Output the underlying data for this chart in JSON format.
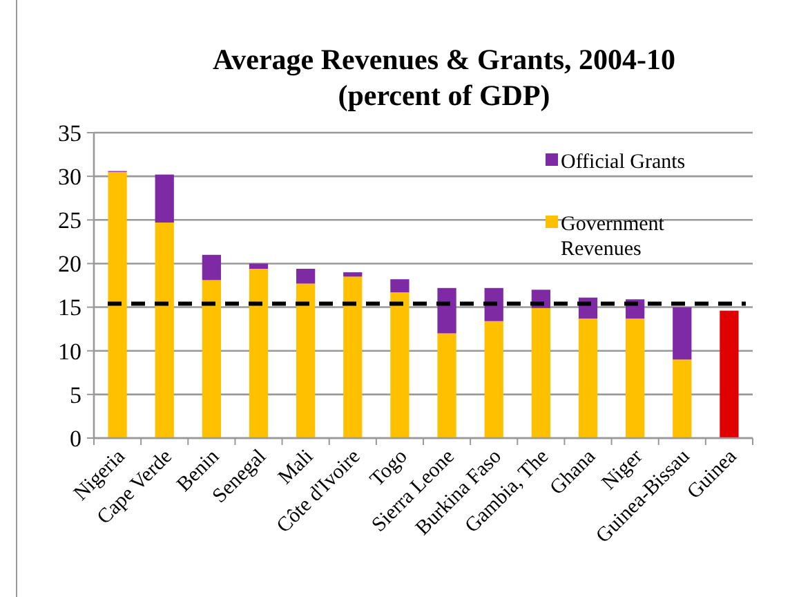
{
  "chart_data": {
    "type": "bar",
    "title": "Average Revenues & Grants, 2004-10\n(percent of GDP)",
    "stacked": true,
    "categories": [
      "Nigeria",
      "Cape Verde",
      "Benin",
      "Senegal",
      "Mali",
      "Côte d'Ivoire",
      "Togo",
      "Sierra Leone",
      "Burkina Faso",
      "Gambia, The",
      "Ghana",
      "Niger",
      "Guinea-Bissau",
      "Guinea"
    ],
    "series": [
      {
        "name": "Government Revenues",
        "color": "#ffc000",
        "colors": [
          "#ffc000",
          "#ffc000",
          "#ffc000",
          "#ffc000",
          "#ffc000",
          "#ffc000",
          "#ffc000",
          "#ffc000",
          "#ffc000",
          "#ffc000",
          "#ffc000",
          "#ffc000",
          "#ffc000",
          "#e00000"
        ],
        "values": [
          30.5,
          24.7,
          18.1,
          19.4,
          17.7,
          18.5,
          16.7,
          12.0,
          13.4,
          14.9,
          13.7,
          13.7,
          9.0,
          14.6
        ]
      },
      {
        "name": "Official Grants",
        "color": "#7f2aa5",
        "values": [
          0.1,
          5.5,
          2.9,
          0.6,
          1.7,
          0.5,
          1.5,
          5.2,
          3.8,
          2.1,
          2.4,
          2.2,
          6.0,
          null
        ]
      }
    ],
    "ylim": [
      0,
      35
    ],
    "yticks": [
      0,
      5,
      10,
      15,
      20,
      25,
      30,
      35
    ],
    "grid": "y",
    "legend": "top right",
    "ref_lines": [
      {
        "axis": "y",
        "value": 15.4,
        "color": "#000000",
        "line_style": "dashed"
      }
    ]
  }
}
